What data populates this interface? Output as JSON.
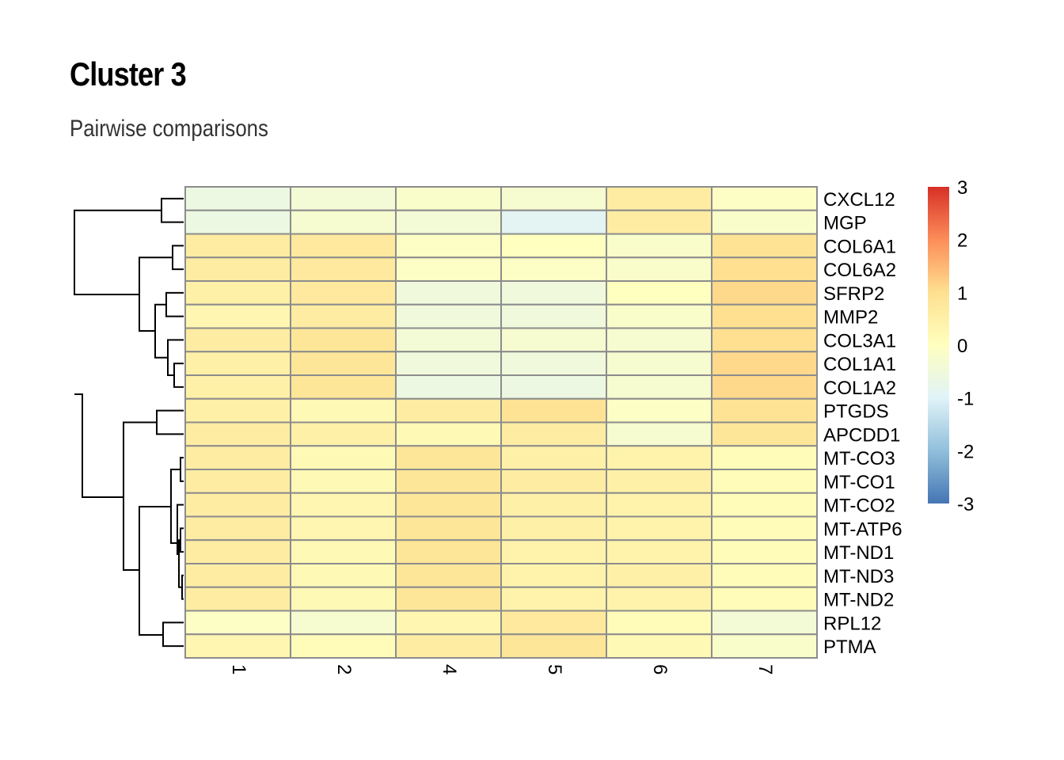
{
  "chart_data": {
    "type": "heatmap",
    "title": "Cluster 3",
    "subtitle": "Pairwise comparisons",
    "columns": [
      "1",
      "2",
      "4",
      "5",
      "6",
      "7"
    ],
    "rows": [
      "CXCL12",
      "MGP",
      "COL6A1",
      "COL6A2",
      "SFRP2",
      "MMP2",
      "COL3A1",
      "COL1A1",
      "COL1A2",
      "PTGDS",
      "APCDD1",
      "MT-CO3",
      "MT-CO1",
      "MT-CO2",
      "MT-ATP6",
      "MT-ND1",
      "MT-ND3",
      "MT-ND2",
      "RPL12",
      "PTMA"
    ],
    "values": [
      [
        -0.6,
        -0.4,
        -0.2,
        -0.3,
        0.6,
        -0.1
      ],
      [
        -0.6,
        -0.3,
        -0.4,
        -0.9,
        0.6,
        -0.2
      ],
      [
        0.6,
        0.7,
        -0.1,
        0.0,
        -0.2,
        0.9
      ],
      [
        0.6,
        0.7,
        -0.1,
        -0.1,
        -0.2,
        1.0
      ],
      [
        0.5,
        0.7,
        -0.5,
        -0.5,
        0.0,
        1.1
      ],
      [
        0.3,
        0.6,
        -0.5,
        -0.5,
        -0.2,
        1.0
      ],
      [
        0.6,
        0.8,
        -0.4,
        -0.3,
        -0.3,
        1.0
      ],
      [
        0.5,
        0.8,
        -0.5,
        -0.5,
        -0.3,
        1.1
      ],
      [
        0.5,
        0.8,
        -0.6,
        -0.6,
        -0.3,
        1.1
      ],
      [
        0.5,
        0.2,
        0.6,
        0.9,
        -0.1,
        0.9
      ],
      [
        0.6,
        0.5,
        0.2,
        0.6,
        -0.3,
        0.8
      ],
      [
        0.6,
        0.2,
        0.8,
        0.5,
        0.4,
        0.1
      ],
      [
        0.6,
        0.2,
        0.8,
        0.6,
        0.5,
        0.1
      ],
      [
        0.6,
        0.3,
        0.8,
        0.5,
        0.4,
        0.1
      ],
      [
        0.6,
        0.3,
        0.8,
        0.5,
        0.4,
        0.1
      ],
      [
        0.6,
        0.2,
        0.8,
        0.4,
        0.4,
        0.1
      ],
      [
        0.6,
        0.2,
        0.8,
        0.4,
        0.5,
        0.1
      ],
      [
        0.6,
        0.2,
        0.8,
        0.4,
        0.4,
        0.1
      ],
      [
        -0.1,
        -0.3,
        0.3,
        0.7,
        0.1,
        -0.4
      ],
      [
        0.3,
        0.1,
        0.6,
        0.8,
        0.2,
        -0.2
      ]
    ],
    "color_scale": {
      "min": -3,
      "max": 3,
      "ticks": [
        "3",
        "2",
        "1",
        "0",
        "-1",
        "-2",
        "-3"
      ],
      "palette": [
        "#4575B4",
        "#91BFDB",
        "#E0F3F8",
        "#FFFFBF",
        "#FEE090",
        "#FC8D59",
        "#D73027"
      ]
    },
    "row_dendrogram": true,
    "grid_color": "#8C8C8C",
    "legend_position": "right"
  }
}
